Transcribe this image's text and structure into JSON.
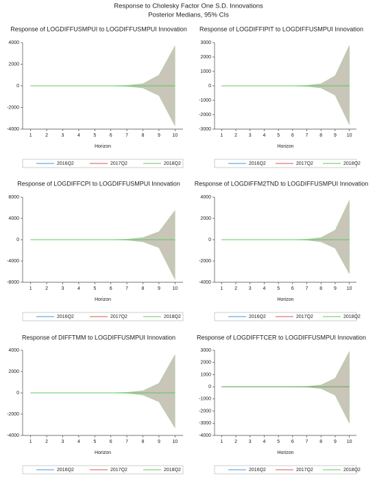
{
  "title": "Response to Cholesky Factor One S.D. Innovations",
  "subtitle": "Posterior Medians, 95% CIs",
  "chart_data": [
    {
      "type": "line",
      "title": "Response of LOGDIFFUSMPUI to LOGDIFFUSMPUI Innovation",
      "x_label": "Horizon",
      "x": [
        1,
        2,
        3,
        4,
        5,
        6,
        7,
        8,
        9,
        10
      ],
      "xlim": [
        0.5,
        10.5
      ],
      "xticks": [
        1,
        2,
        3,
        4,
        5,
        6,
        7,
        8,
        9,
        10
      ],
      "ylim": [
        -4000,
        4000
      ],
      "yticks": [
        -4000,
        -2000,
        0,
        2000,
        4000
      ],
      "band": {
        "color": "#c9c5b8",
        "upper": [
          0,
          0,
          0,
          0,
          0,
          10,
          40,
          200,
          1000,
          3700
        ],
        "lower": [
          0,
          0,
          0,
          0,
          0,
          -10,
          -40,
          -200,
          -900,
          -3700
        ]
      },
      "series": [
        {
          "name": "2016Q2",
          "color": "#4a90d9",
          "values": [
            0,
            0,
            0,
            0,
            0,
            0,
            0,
            0,
            0,
            0
          ]
        },
        {
          "name": "2017Q2",
          "color": "#d9534f",
          "values": [
            0,
            0,
            0,
            0,
            0,
            0,
            0,
            0,
            0,
            0
          ]
        },
        {
          "name": "2018Q2",
          "color": "#5cc85c",
          "values": [
            0,
            0,
            0,
            0,
            0,
            0,
            0,
            0,
            0,
            0
          ]
        }
      ]
    },
    {
      "type": "line",
      "title": "Response of LOGDIFFIPIT to LOGDIFFUSMPUI Innovation",
      "x_label": "Horizon",
      "x": [
        1,
        2,
        3,
        4,
        5,
        6,
        7,
        8,
        9,
        10
      ],
      "xlim": [
        0.5,
        10.5
      ],
      "xticks": [
        1,
        2,
        3,
        4,
        5,
        6,
        7,
        8,
        9,
        10
      ],
      "ylim": [
        -3000,
        3000
      ],
      "yticks": [
        -3000,
        -2000,
        -1000,
        0,
        1000,
        2000,
        3000
      ],
      "band": {
        "color": "#c9c5b8",
        "upper": [
          0,
          0,
          0,
          0,
          0,
          10,
          30,
          150,
          700,
          2800
        ],
        "lower": [
          0,
          0,
          0,
          0,
          0,
          -10,
          -30,
          -150,
          -650,
          -2700
        ]
      },
      "series": [
        {
          "name": "2016Q2",
          "color": "#4a90d9",
          "values": [
            0,
            0,
            0,
            0,
            0,
            0,
            0,
            0,
            0,
            0
          ]
        },
        {
          "name": "2017Q2",
          "color": "#d9534f",
          "values": [
            0,
            0,
            0,
            0,
            0,
            0,
            0,
            0,
            0,
            0
          ]
        },
        {
          "name": "2018Q2",
          "color": "#5cc85c",
          "values": [
            0,
            0,
            0,
            0,
            0,
            0,
            0,
            0,
            0,
            0
          ]
        }
      ]
    },
    {
      "type": "line",
      "title": "Response of LOGDIFFCPI to LOGDIFFUSMPUI Innovation",
      "x_label": "Horizon",
      "x": [
        1,
        2,
        3,
        4,
        5,
        6,
        7,
        8,
        9,
        10
      ],
      "xlim": [
        0.5,
        10.5
      ],
      "xticks": [
        1,
        2,
        3,
        4,
        5,
        6,
        7,
        8,
        9,
        10
      ],
      "ylim": [
        -8000,
        8000
      ],
      "yticks": [
        -8000,
        -4000,
        0,
        4000,
        8000
      ],
      "band": {
        "color": "#c9c5b8",
        "upper": [
          0,
          0,
          0,
          0,
          0,
          20,
          80,
          400,
          1500,
          5500
        ],
        "lower": [
          0,
          0,
          0,
          0,
          0,
          -20,
          -80,
          -400,
          -1500,
          -7500
        ]
      },
      "series": [
        {
          "name": "2016Q2",
          "color": "#4a90d9",
          "values": [
            0,
            0,
            0,
            0,
            0,
            0,
            0,
            0,
            0,
            0
          ]
        },
        {
          "name": "2017Q2",
          "color": "#d9534f",
          "values": [
            0,
            0,
            0,
            0,
            0,
            0,
            0,
            0,
            0,
            0
          ]
        },
        {
          "name": "2018Q2",
          "color": "#5cc85c",
          "values": [
            0,
            0,
            0,
            0,
            0,
            0,
            0,
            0,
            0,
            0
          ]
        }
      ]
    },
    {
      "type": "line",
      "title": "Response of LOGDIFFM2TND to LOGDIFFUSMPUI Innovation",
      "x_label": "Horizon",
      "x": [
        1,
        2,
        3,
        4,
        5,
        6,
        7,
        8,
        9,
        10
      ],
      "xlim": [
        0.5,
        10.5
      ],
      "xticks": [
        1,
        2,
        3,
        4,
        5,
        6,
        7,
        8,
        9,
        10
      ],
      "ylim": [
        -4000,
        4000
      ],
      "yticks": [
        -4000,
        -2000,
        0,
        2000,
        4000
      ],
      "band": {
        "color": "#c9c5b8",
        "upper": [
          0,
          0,
          0,
          0,
          0,
          10,
          40,
          200,
          900,
          3700
        ],
        "lower": [
          0,
          0,
          0,
          0,
          0,
          -10,
          -40,
          -200,
          -800,
          -3200
        ]
      },
      "series": [
        {
          "name": "2016Q2",
          "color": "#4a90d9",
          "values": [
            0,
            0,
            0,
            0,
            0,
            0,
            0,
            0,
            0,
            0
          ]
        },
        {
          "name": "2017Q2",
          "color": "#d9534f",
          "values": [
            0,
            0,
            0,
            0,
            0,
            0,
            0,
            0,
            0,
            0
          ]
        },
        {
          "name": "2018Q2",
          "color": "#5cc85c",
          "values": [
            0,
            0,
            0,
            0,
            0,
            0,
            0,
            0,
            0,
            0
          ]
        }
      ]
    },
    {
      "type": "line",
      "title": "Response of DIFFTMM to LOGDIFFUSMPUI Innovation",
      "x_label": "Horizon",
      "x": [
        1,
        2,
        3,
        4,
        5,
        6,
        7,
        8,
        9,
        10
      ],
      "xlim": [
        0.5,
        10.5
      ],
      "xticks": [
        1,
        2,
        3,
        4,
        5,
        6,
        7,
        8,
        9,
        10
      ],
      "ylim": [
        -4000,
        4000
      ],
      "yticks": [
        -4000,
        -2000,
        0,
        2000,
        4000
      ],
      "band": {
        "color": "#c9c5b8",
        "upper": [
          0,
          0,
          0,
          0,
          0,
          10,
          40,
          200,
          900,
          3600
        ],
        "lower": [
          0,
          0,
          0,
          0,
          0,
          -10,
          -40,
          -200,
          -850,
          -3300
        ]
      },
      "series": [
        {
          "name": "2016Q2",
          "color": "#4a90d9",
          "values": [
            0,
            0,
            0,
            0,
            0,
            0,
            0,
            0,
            0,
            0
          ]
        },
        {
          "name": "2017Q2",
          "color": "#d9534f",
          "values": [
            0,
            0,
            0,
            0,
            0,
            0,
            0,
            0,
            0,
            0
          ]
        },
        {
          "name": "2018Q2",
          "color": "#5cc85c",
          "values": [
            0,
            0,
            0,
            0,
            0,
            0,
            0,
            0,
            0,
            0
          ]
        }
      ]
    },
    {
      "type": "line",
      "title": "Response of LOGDIFFTCER to LOGDIFFUSMPUI Innovation",
      "x_label": "Horizon",
      "x": [
        1,
        2,
        3,
        4,
        5,
        6,
        7,
        8,
        9,
        10
      ],
      "xlim": [
        0.5,
        10.5
      ],
      "xticks": [
        1,
        2,
        3,
        4,
        5,
        6,
        7,
        8,
        9,
        10
      ],
      "ylim": [
        -4000,
        3000
      ],
      "yticks": [
        -4000,
        -3000,
        -2000,
        -1000,
        0,
        1000,
        2000,
        3000
      ],
      "band": {
        "color": "#c9c5b8",
        "upper": [
          0,
          0,
          0,
          0,
          0,
          10,
          30,
          150,
          700,
          2900
        ],
        "lower": [
          0,
          0,
          0,
          0,
          0,
          -10,
          -30,
          -150,
          -700,
          -3000
        ]
      },
      "series": [
        {
          "name": "2016Q2",
          "color": "#4a90d9",
          "values": [
            0,
            0,
            0,
            0,
            0,
            0,
            0,
            0,
            0,
            0
          ]
        },
        {
          "name": "2017Q2",
          "color": "#d9534f",
          "values": [
            0,
            0,
            0,
            0,
            0,
            0,
            0,
            0,
            0,
            0
          ]
        },
        {
          "name": "2018Q2",
          "color": "#5cc85c",
          "values": [
            0,
            0,
            0,
            0,
            0,
            0,
            0,
            0,
            0,
            0
          ]
        }
      ]
    }
  ]
}
